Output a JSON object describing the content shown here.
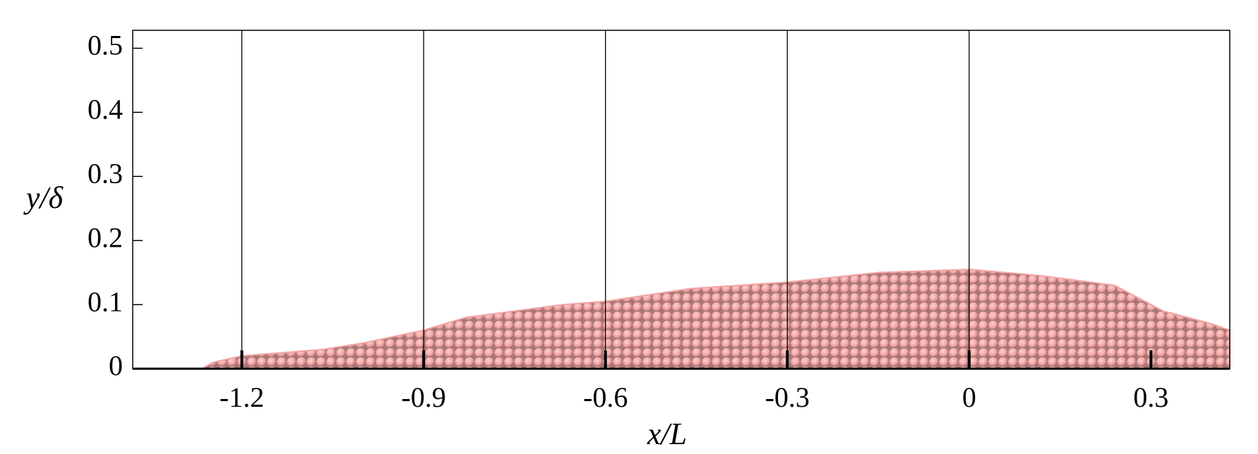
{
  "chart_data": {
    "type": "area",
    "x_label": "x/L",
    "y_label": "y/δ",
    "x": [
      -1.266,
      -1.247,
      -1.2,
      -1.067,
      -1.0,
      -0.9,
      -0.83,
      -0.75,
      -0.67,
      -0.6,
      -0.46,
      -0.3,
      -0.15,
      0,
      0.12,
      0.24,
      0.32,
      0.4,
      0.43
    ],
    "values": [
      0,
      0.01,
      0.02,
      0.03,
      0.04,
      0.06,
      0.08,
      0.09,
      0.1,
      0.105,
      0.125,
      0.135,
      0.15,
      0.155,
      0.145,
      0.13,
      0.09,
      0.07,
      0.06
    ],
    "color": "#f2a3a3",
    "xlim": [
      -1.38,
      0.43
    ],
    "ylim": [
      0,
      0.528
    ],
    "xticks": [
      -1.2,
      -0.9,
      -0.6,
      -0.3,
      0,
      0.3
    ],
    "yticks": [
      0,
      0.1,
      0.2,
      0.3,
      0.4,
      0.5
    ],
    "vlines": [
      -1.2,
      -0.9,
      -0.6,
      -0.3,
      0
    ]
  }
}
